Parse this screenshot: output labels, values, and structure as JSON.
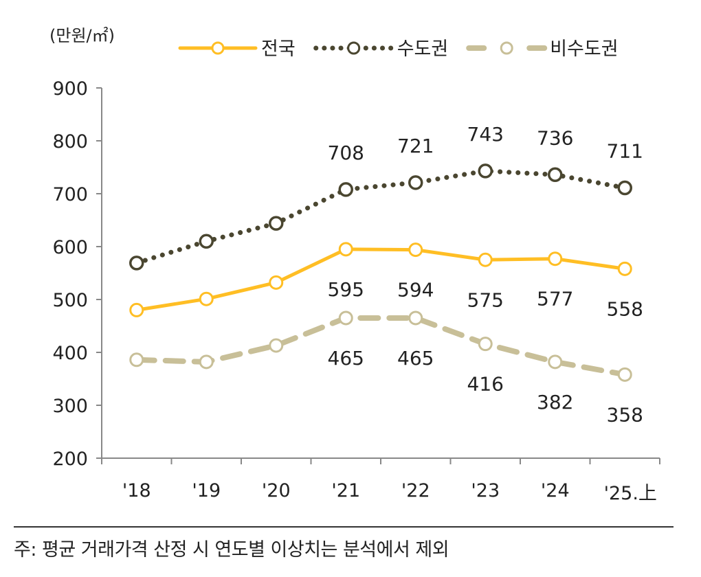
{
  "chart_data": {
    "type": "line",
    "unit_label": "(만원/㎡)",
    "categories": [
      "'18",
      "'19",
      "'20",
      "'21",
      "'22",
      "'23",
      "'24",
      "'25.上"
    ],
    "ylim": [
      200,
      900
    ],
    "yticks": [
      200,
      300,
      400,
      500,
      600,
      700,
      800,
      900
    ],
    "grid": false,
    "legend_position": "top",
    "series": [
      {
        "name": "수도권",
        "color": "#4a4630",
        "style": "dotted",
        "values": [
          569,
          610,
          644,
          708,
          721,
          743,
          736,
          711
        ],
        "labels": [
          null,
          null,
          null,
          "708",
          "721",
          "743",
          "736",
          "711"
        ],
        "label_side": "above"
      },
      {
        "name": "전국",
        "color": "#ffbe24",
        "style": "solid",
        "values": [
          480,
          501,
          532,
          595,
          594,
          575,
          577,
          558
        ],
        "labels": [
          null,
          null,
          null,
          "595",
          "594",
          "575",
          "577",
          "558"
        ],
        "label_side": "below"
      },
      {
        "name": "비수도권",
        "color": "#c8bf98",
        "style": "dashed",
        "values": [
          386,
          382,
          413,
          465,
          465,
          416,
          382,
          358
        ],
        "labels": [
          null,
          null,
          null,
          "465",
          "465",
          "416",
          "382",
          "358"
        ],
        "label_side": "below"
      }
    ],
    "legend_order": [
      1,
      0,
      2
    ]
  },
  "note": "주: 평균 거래가격 산정 시 연도별 이상치는 분석에서 제외"
}
